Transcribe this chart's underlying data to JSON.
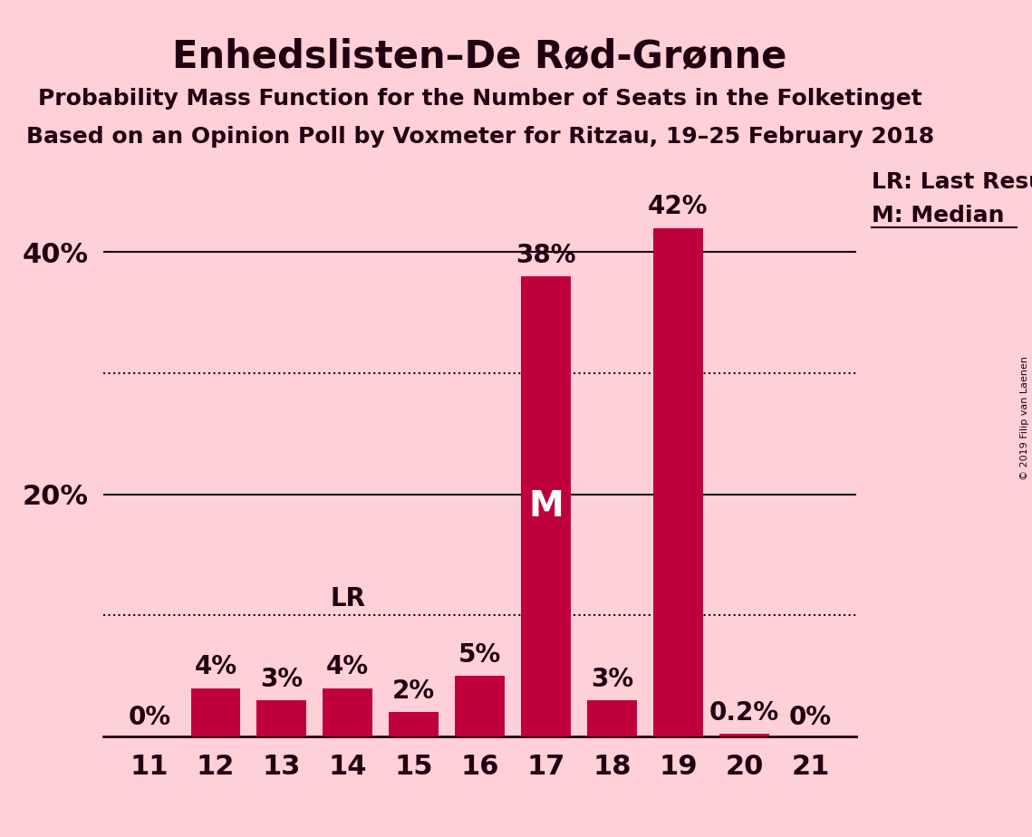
{
  "title": "Enhedslisten–De Rød-Grønne",
  "subtitle1": "Probability Mass Function for the Number of Seats in the Folketinget",
  "subtitle2": "Based on an Opinion Poll by Voxmeter for Ritzau, 19–25 February 2018",
  "seats": [
    11,
    12,
    13,
    14,
    15,
    16,
    17,
    18,
    19,
    20,
    21
  ],
  "probabilities": [
    0.0,
    4.0,
    3.0,
    4.0,
    2.0,
    5.0,
    38.0,
    3.0,
    42.0,
    0.2,
    0.0
  ],
  "bar_labels": [
    "0%",
    "4%",
    "3%",
    "4%",
    "2%",
    "5%",
    "38%",
    "3%",
    "42%",
    "0.2%",
    "0%"
  ],
  "bar_color": "#C0003C",
  "background_color": "#FFD0D8",
  "text_color": "#200010",
  "median_seat": 17,
  "lr_seat": 14,
  "ylim": [
    0,
    47
  ],
  "legend_lr": "LR: Last Result",
  "legend_m": "M: Median",
  "copyright": "© 2019 Filip van Laenen",
  "title_fontsize": 30,
  "subtitle_fontsize": 18,
  "tick_fontsize": 22,
  "annotation_fontsize": 20,
  "legend_fontsize": 18
}
